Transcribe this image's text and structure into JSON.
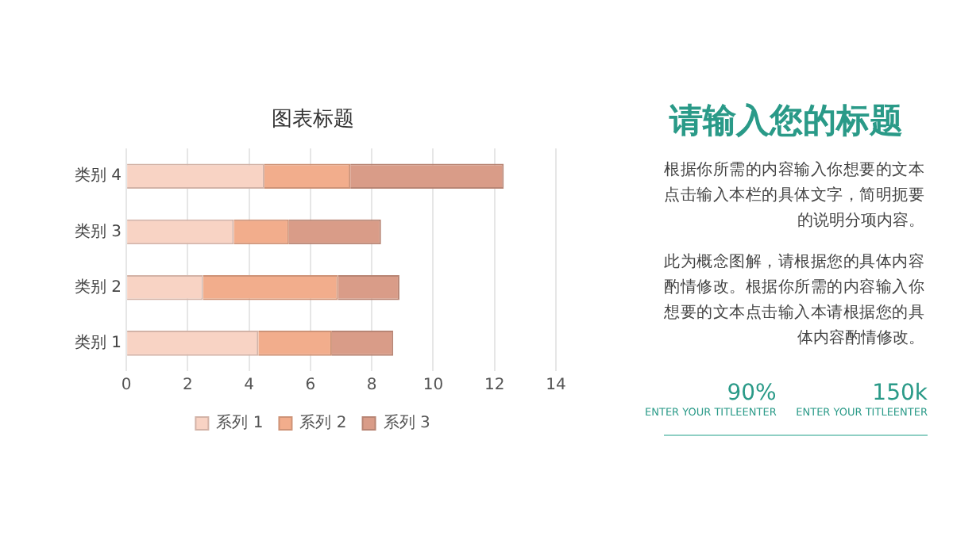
{
  "chart_data": [
    {
      "type": "bar",
      "title": "图表标题",
      "orientation": "horizontal",
      "stacked": true,
      "categories": [
        "类别 4",
        "类别 3",
        "类别 2",
        "类别 1"
      ],
      "series": [
        {
          "name": "系列 1",
          "color": "#f8d3c4",
          "values": [
            4.5,
            3.5,
            2.5,
            4.3
          ]
        },
        {
          "name": "系列 2",
          "color": "#f2ad8c",
          "values": [
            2.8,
            1.8,
            4.4,
            2.4
          ]
        },
        {
          "name": "系列 3",
          "color": "#d99c88",
          "values": [
            5,
            3,
            2,
            2
          ]
        }
      ],
      "xlim": [
        0,
        14
      ],
      "xticks": [
        0,
        2,
        4,
        6,
        8,
        10,
        12,
        14
      ],
      "grid": "x",
      "legend": "bottom"
    },
    {
      "type": "other",
      "title": "请输入您的标题",
      "annotations": [
        "根据你所需的内容输入你想要的文本点击输入本栏的具体文字，简明扼要的说明分项内容。",
        "此为概念图解，请根据您的具体内容酌情修改。根据你所需的内容输入你想要的文本点击输入本请根据您的具体内容酌情修改。",
        "90%",
        "ENTER YOUR TITLEENTER",
        "150k",
        "ENTER YOUR TITLEENTER"
      ]
    }
  ]
}
